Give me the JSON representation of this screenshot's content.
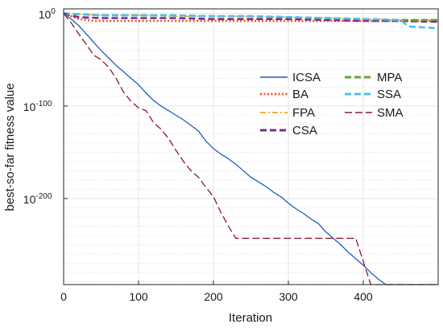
{
  "chart_data": {
    "type": "line",
    "title": "",
    "xlabel": "Iteration",
    "ylabel": "best-so-far fitness value",
    "xlim": [
      0,
      500
    ],
    "ylim_exponent": [
      -293,
      5
    ],
    "y_scale": "log",
    "grid": true,
    "legend_placement": "top-right",
    "x_ticks": [
      {
        "value": 0,
        "label": "0"
      },
      {
        "value": 100,
        "label": "100"
      },
      {
        "value": 200,
        "label": "200"
      },
      {
        "value": 300,
        "label": "300"
      },
      {
        "value": 400,
        "label": "400"
      }
    ],
    "y_ticks": [
      {
        "exponent": 0,
        "base": "10",
        "sup": "0"
      },
      {
        "exponent": -100,
        "base": "10",
        "sup": "-100"
      },
      {
        "exponent": -200,
        "base": "10",
        "sup": "-200"
      }
    ],
    "series": [
      {
        "name": "ICSA",
        "color": "#1f5fbf",
        "dash": "solid",
        "width": 1.3,
        "x": [
          0,
          10,
          20,
          30,
          40,
          50,
          60,
          70,
          80,
          90,
          100,
          110,
          120,
          130,
          140,
          150,
          160,
          170,
          180,
          190,
          200,
          210,
          220,
          230,
          240,
          250,
          260,
          270,
          280,
          290,
          300,
          310,
          320,
          330,
          340,
          350,
          360,
          370,
          380,
          390,
          400,
          410,
          420,
          430,
          440,
          450,
          460,
          470,
          480,
          490,
          500
        ],
        "y_exponent": [
          0,
          -6,
          -13,
          -22,
          -31,
          -40,
          -48,
          -56,
          -63,
          -70,
          -77,
          -86,
          -94,
          -100,
          -105,
          -110,
          -115,
          -121,
          -127,
          -138,
          -146,
          -152,
          -157,
          -163,
          -170,
          -177,
          -182,
          -187,
          -193,
          -198,
          -205,
          -211,
          -216,
          -222,
          -227,
          -236,
          -243,
          -250,
          -258,
          -265,
          -272,
          -280,
          -287,
          -293,
          -293,
          -293,
          -293,
          -293,
          -293,
          -293,
          -293
        ]
      },
      {
        "name": "BA",
        "color": "#e8501e",
        "dash": "dot",
        "width": 2.5,
        "x": [
          0,
          10,
          20,
          30,
          40,
          50,
          100,
          150,
          200,
          250,
          300,
          350,
          400,
          450,
          500
        ],
        "y_exponent": [
          0,
          -3,
          -6,
          -7,
          -8,
          -8,
          -8,
          -8,
          -8,
          -8,
          -8,
          -8,
          -8,
          -8,
          -8
        ]
      },
      {
        "name": "FPA",
        "color": "#f0b13a",
        "dash": "dashdot",
        "width": 1.6,
        "x": [
          0,
          50,
          100,
          150,
          200,
          250,
          300,
          350,
          400,
          450,
          500
        ],
        "y_exponent": [
          0,
          -2,
          -2,
          -3,
          -3,
          -3,
          -4,
          -5,
          -6,
          -7,
          -7
        ]
      },
      {
        "name": "CSA",
        "color": "#7a2a8c",
        "dash": "dash",
        "width": 2.6,
        "x": [
          0,
          20,
          50,
          100,
          150,
          200,
          250,
          300,
          350,
          400,
          450,
          500
        ],
        "y_exponent": [
          0,
          -4,
          -5,
          -5,
          -5,
          -6,
          -6,
          -6,
          -7,
          -8,
          -8,
          -9
        ]
      },
      {
        "name": "MPA",
        "color": "#6aa436",
        "dash": "dash",
        "width": 2.6,
        "x": [
          0,
          50,
          100,
          150,
          200,
          250,
          300,
          350,
          400,
          450,
          500
        ],
        "y_exponent": [
          0,
          -2,
          -2,
          -2,
          -3,
          -3,
          -4,
          -5,
          -6,
          -7,
          -7
        ]
      },
      {
        "name": "SSA",
        "color": "#4fc0e8",
        "dash": "dash",
        "width": 2.6,
        "x": [
          0,
          50,
          100,
          150,
          200,
          250,
          300,
          350,
          400,
          450,
          460,
          480,
          500
        ],
        "y_exponent": [
          0,
          -2,
          -2,
          -2,
          -3,
          -3,
          -4,
          -5,
          -6,
          -7,
          -14,
          -15,
          -16
        ]
      },
      {
        "name": "SMA",
        "color": "#8b1a2a",
        "dash": "longdash",
        "width": 1.3,
        "x": [
          0,
          10,
          20,
          30,
          40,
          50,
          60,
          70,
          80,
          90,
          100,
          110,
          120,
          130,
          140,
          150,
          160,
          170,
          180,
          190,
          200,
          210,
          220,
          230,
          300,
          350,
          390,
          400,
          410,
          420,
          500
        ],
        "y_exponent": [
          0,
          -10,
          -22,
          -33,
          -45,
          -50,
          -58,
          -70,
          -85,
          -95,
          -102,
          -105,
          -118,
          -125,
          -135,
          -148,
          -160,
          -170,
          -177,
          -188,
          -198,
          -215,
          -230,
          -243,
          -243,
          -243,
          -243,
          -268,
          -293,
          -293,
          -293
        ]
      }
    ]
  }
}
